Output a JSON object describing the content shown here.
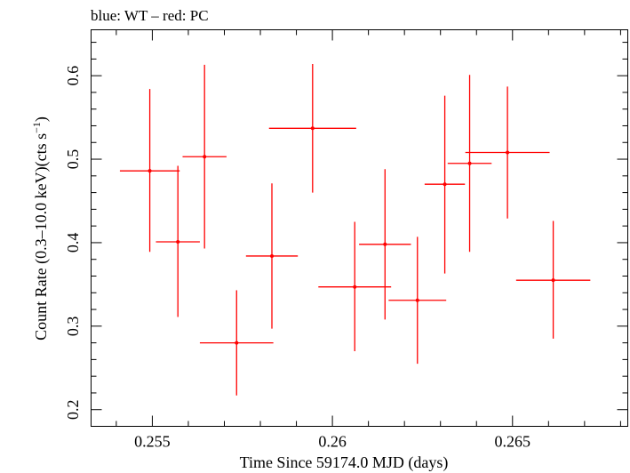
{
  "chart_data": {
    "type": "scatter",
    "title": "blue: WT – red: PC",
    "xlabel": "Time Since 59174.0 MJD (days)",
    "ylabel_main": "Count Rate (0.3–10.0 keV)(cts s",
    "ylabel_sup": "−1",
    "ylabel_close": ")",
    "xlim": [
      0.2533,
      0.2682
    ],
    "ylim": [
      0.18,
      0.655
    ],
    "x_ticks": [
      {
        "value": 0.255,
        "label": "0.255"
      },
      {
        "value": 0.26,
        "label": "0.26"
      },
      {
        "value": 0.265,
        "label": "0.265"
      }
    ],
    "y_ticks": [
      {
        "value": 0.2,
        "label": "0.2"
      },
      {
        "value": 0.3,
        "label": "0.3"
      },
      {
        "value": 0.4,
        "label": "0.4"
      },
      {
        "value": 0.5,
        "label": "0.5"
      },
      {
        "value": 0.6,
        "label": "0.6"
      }
    ],
    "grid": false,
    "series": [
      {
        "name": "PC",
        "color": "#ff0000",
        "points": [
          {
            "x": 0.25493,
            "xerr": 0.00083,
            "y": 0.486,
            "ylo": 0.389,
            "yhi": 0.584
          },
          {
            "x": 0.25571,
            "xerr": 0.00061,
            "y": 0.401,
            "ylo": 0.311,
            "yhi": 0.492
          },
          {
            "x": 0.25645,
            "xerr": 0.00061,
            "y": 0.503,
            "ylo": 0.393,
            "yhi": 0.613
          },
          {
            "x": 0.25734,
            "xerr": 0.00102,
            "y": 0.28,
            "ylo": 0.217,
            "yhi": 0.343
          },
          {
            "x": 0.25832,
            "xerr": 0.00072,
            "y": 0.384,
            "ylo": 0.297,
            "yhi": 0.471
          },
          {
            "x": 0.25945,
            "xerr": 0.00121,
            "y": 0.537,
            "ylo": 0.46,
            "yhi": 0.614
          },
          {
            "x": 0.26062,
            "xerr": 0.00101,
            "y": 0.347,
            "ylo": 0.27,
            "yhi": 0.425
          },
          {
            "x": 0.26146,
            "xerr": 0.00072,
            "y": 0.398,
            "ylo": 0.308,
            "yhi": 0.488
          },
          {
            "x": 0.26236,
            "xerr": 0.0008,
            "y": 0.331,
            "ylo": 0.255,
            "yhi": 0.407
          },
          {
            "x": 0.26312,
            "xerr": 0.00056,
            "y": 0.47,
            "ylo": 0.363,
            "yhi": 0.576
          },
          {
            "x": 0.26381,
            "xerr": 0.00061,
            "y": 0.495,
            "ylo": 0.389,
            "yhi": 0.601
          },
          {
            "x": 0.26486,
            "xerr": 0.00117,
            "y": 0.508,
            "ylo": 0.429,
            "yhi": 0.587
          },
          {
            "x": 0.26613,
            "xerr": 0.00103,
            "y": 0.355,
            "ylo": 0.285,
            "yhi": 0.426
          }
        ]
      }
    ]
  }
}
